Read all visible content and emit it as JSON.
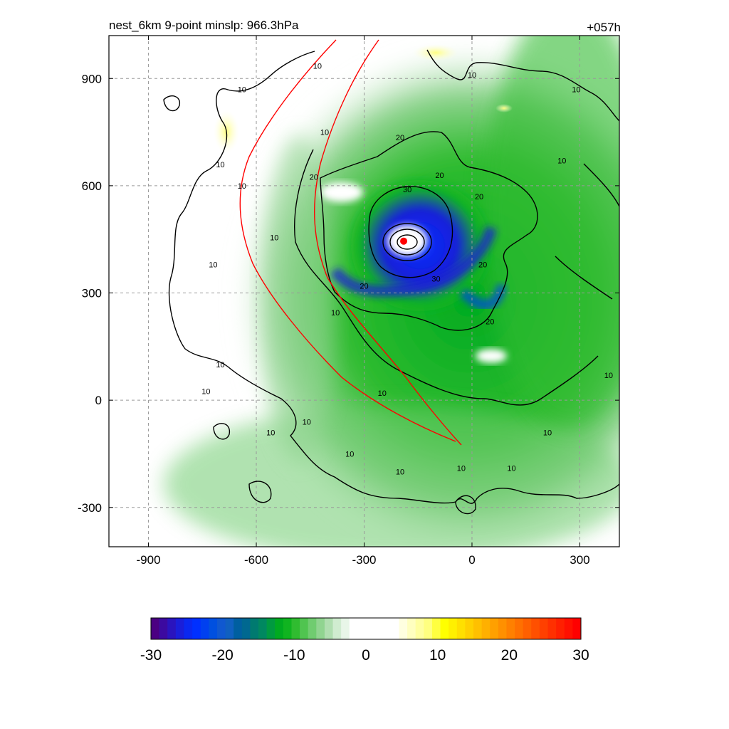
{
  "chart_data": {
    "type": "heatmap",
    "title": "nest_6km  9-point minslp: 966.3hPa",
    "time_label": "+057h",
    "xlabel": "",
    "ylabel": "",
    "xlim": [
      -1010,
      410
    ],
    "ylim": [
      -410,
      1020
    ],
    "x_ticks": [
      -900,
      -600,
      -300,
      0,
      300
    ],
    "y_ticks": [
      -300,
      0,
      300,
      600,
      900
    ],
    "grid": true,
    "center": {
      "x": -190,
      "y": 445
    },
    "contour_levels": [
      10,
      20,
      30
    ],
    "contour_labels": [
      {
        "text": "10",
        "x": -430,
        "y": 935
      },
      {
        "text": "10",
        "x": -640,
        "y": 870
      },
      {
        "text": "10",
        "x": -700,
        "y": 660
      },
      {
        "text": "10",
        "x": -640,
        "y": 600
      },
      {
        "text": "10",
        "x": -550,
        "y": 455
      },
      {
        "text": "10",
        "x": -720,
        "y": 380
      },
      {
        "text": "10",
        "x": -410,
        "y": 750
      },
      {
        "text": "20",
        "x": -440,
        "y": 625
      },
      {
        "text": "20",
        "x": -200,
        "y": 735
      },
      {
        "text": "20",
        "x": -90,
        "y": 630
      },
      {
        "text": "30",
        "x": -180,
        "y": 590
      },
      {
        "text": "20",
        "x": 20,
        "y": 570
      },
      {
        "text": "30",
        "x": -100,
        "y": 340
      },
      {
        "text": "20",
        "x": -300,
        "y": 320
      },
      {
        "text": "20",
        "x": 50,
        "y": 220
      },
      {
        "text": "20",
        "x": 30,
        "y": 380
      },
      {
        "text": "10",
        "x": -380,
        "y": 245
      },
      {
        "text": "10",
        "x": -700,
        "y": 100
      },
      {
        "text": "10",
        "x": -740,
        "y": 25
      },
      {
        "text": "10",
        "x": -250,
        "y": 20
      },
      {
        "text": "10",
        "x": -460,
        "y": -60
      },
      {
        "text": "10",
        "x": -560,
        "y": -90
      },
      {
        "text": "10",
        "x": -340,
        "y": -150
      },
      {
        "text": "10",
        "x": -200,
        "y": -200
      },
      {
        "text": "10",
        "x": -30,
        "y": -190
      },
      {
        "text": "10",
        "x": 210,
        "y": -90
      },
      {
        "text": "10",
        "x": 110,
        "y": -190
      },
      {
        "text": "10",
        "x": 380,
        "y": 70
      },
      {
        "text": "10",
        "x": 250,
        "y": 670
      },
      {
        "text": "10",
        "x": 0,
        "y": 910
      },
      {
        "text": "10",
        "x": 290,
        "y": 870
      }
    ],
    "colorbar": {
      "min": -30,
      "max": 30,
      "ticks": [
        -30,
        -20,
        -10,
        0,
        10,
        20,
        30
      ],
      "colors": [
        "#4b0082",
        "#3c0aa0",
        "#2a14be",
        "#1a1ed9",
        "#0a28f0",
        "#0030ff",
        "#0040f0",
        "#0050e0",
        "#1058d0",
        "#1060c0",
        "#005fa0",
        "#006890",
        "#007a70",
        "#008860",
        "#009a40",
        "#00aa20",
        "#10b420",
        "#30bc30",
        "#50c450",
        "#70cc70",
        "#90d490",
        "#b0deb0",
        "#d0ecd0",
        "#e8f6e8",
        "#ffffff",
        "#ffffff",
        "#ffffff",
        "#ffffff",
        "#ffffff",
        "#ffffff",
        "#ffffe0",
        "#ffffc0",
        "#ffffa0",
        "#ffff80",
        "#ffff40",
        "#ffff00",
        "#fff000",
        "#ffe000",
        "#ffd000",
        "#ffc000",
        "#ffb000",
        "#ffa000",
        "#ff9000",
        "#ff8000",
        "#ff7000",
        "#ff6000",
        "#ff5000",
        "#ff4000",
        "#ff3000",
        "#ff2000",
        "#ff1000",
        "#ff0000"
      ]
    }
  }
}
